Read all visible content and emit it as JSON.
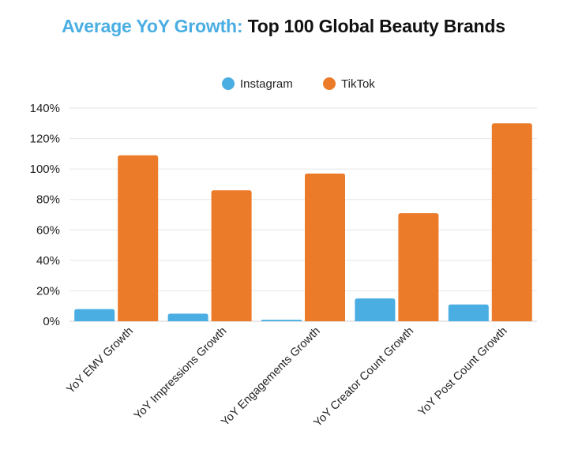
{
  "chart_data": {
    "type": "bar",
    "title_accent": "Average YoY Growth:",
    "title_main": "Top 100 Global Beauty Brands",
    "categories": [
      "YoY EMV Growth",
      "YoY Impressions Growth",
      "YoY Engagements Growth",
      "YoY Creator Count Growth",
      "YoY Post Count Growth"
    ],
    "series": [
      {
        "name": "Instagram",
        "color": "#4aaee2",
        "values": [
          8,
          5,
          1,
          15,
          11
        ]
      },
      {
        "name": "TikTok",
        "color": "#ec7b29",
        "values": [
          109,
          86,
          97,
          71,
          130
        ]
      }
    ],
    "ylim": [
      0,
      140
    ],
    "yticks": [
      0,
      20,
      40,
      60,
      80,
      100,
      120,
      140
    ],
    "ytick_labels": [
      "0%",
      "20%",
      "40%",
      "60%",
      "80%",
      "100%",
      "120%",
      "140%"
    ],
    "xlabel": "",
    "ylabel": "",
    "grid": true,
    "legend_position": "top-center"
  }
}
